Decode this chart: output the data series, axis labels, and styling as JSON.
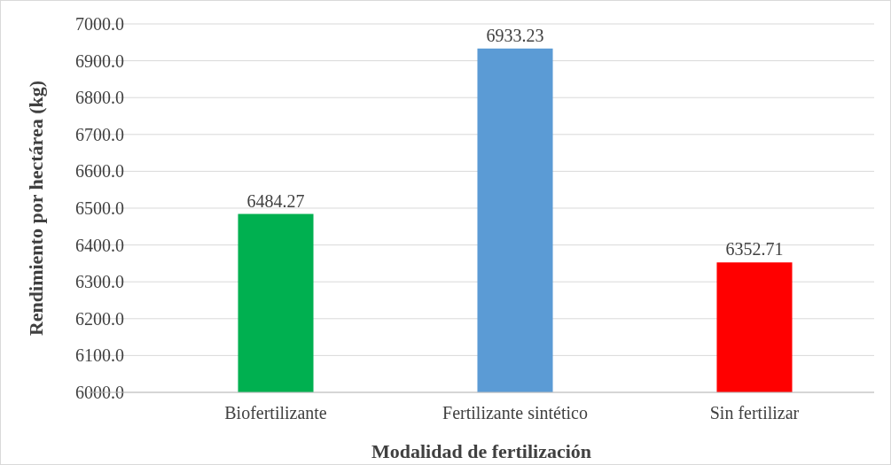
{
  "chart_data": {
    "type": "bar",
    "xlabel": "Modalidad de fertilización",
    "ylabel": "Rendimiento por hectárea (kg)",
    "categories": [
      "Biofertilizante",
      "Fertilizante sintético",
      "Sin fertilizar"
    ],
    "values": [
      6484.27,
      6933.23,
      6352.71
    ],
    "colors": [
      "#00b050",
      "#5b9bd5",
      "#ff0000"
    ],
    "ylim": [
      6000,
      7000
    ],
    "yticks": [
      {
        "value": 6000,
        "label": "6000.0"
      },
      {
        "value": 6100,
        "label": "6100.0"
      },
      {
        "value": 6200,
        "label": "6200.0"
      },
      {
        "value": 6300,
        "label": "6300.0"
      },
      {
        "value": 6400,
        "label": "6400.0"
      },
      {
        "value": 6500,
        "label": "6500.0"
      },
      {
        "value": 6600,
        "label": "6600.0"
      },
      {
        "value": 6700,
        "label": "6700.0"
      },
      {
        "value": 6800,
        "label": "6800.0"
      },
      {
        "value": 6900,
        "label": "6900.0"
      },
      {
        "value": 7000,
        "label": "7000.0"
      }
    ],
    "grid": "y",
    "data_labels": true
  }
}
